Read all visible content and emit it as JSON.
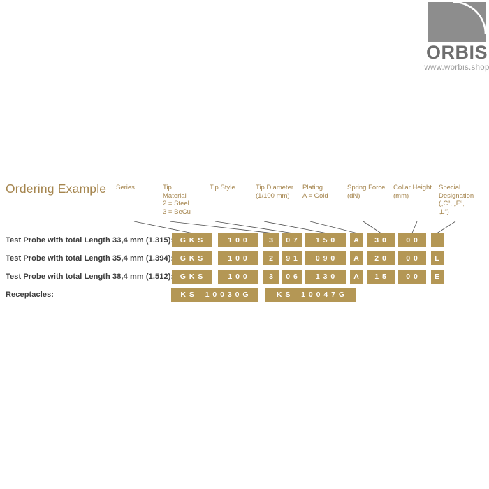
{
  "logo": {
    "brand": "ORBIS",
    "website": "www.worbis.shop",
    "mark_icon": "quarter-arc-square",
    "colors": {
      "square": "#8d8d8d",
      "arc": "#ffffff",
      "brand_text": "#6e6e6e",
      "website_text": "#9c9c9c"
    }
  },
  "title": "Ordering Example",
  "accent_color": "#a5854e",
  "cell_color": "#b49755",
  "columns": [
    {
      "label": "Series"
    },
    {
      "label": "Tip\nMaterial\n2 = Steel\n3 = BeCu"
    },
    {
      "label": "Tip Style"
    },
    {
      "label": "Tip Diameter\n(1/100 mm)"
    },
    {
      "label": "Plating\nA = Gold"
    },
    {
      "label": "Spring Force\n(dN)"
    },
    {
      "label": "Collar Height\n(mm)"
    },
    {
      "label": "Special\nDesignation\n(„C“, „E“,\n„L“)"
    }
  ],
  "rows": [
    {
      "label": "Test Probe with total Length 33,4 mm (1.315):",
      "cells": [
        "G K S",
        "1 0 0",
        "3",
        "0 7",
        "1 5 0",
        "A",
        "3 0",
        "0 0",
        ""
      ]
    },
    {
      "label": "Test Probe with total Length 35,4 mm (1.394):",
      "cells": [
        "G K S",
        "1 0 0",
        "2",
        "9 1",
        "0 9 0",
        "A",
        "2 0",
        "0 0",
        "L"
      ]
    },
    {
      "label": "Test Probe with total Length 38,4 mm (1.512):",
      "cells": [
        "G K S",
        "1 0 0",
        "3",
        "0 6",
        "1 3 0",
        "A",
        "1 5",
        "0 0",
        "E"
      ]
    }
  ],
  "receptacles": {
    "label": "Receptacles:",
    "cells": [
      "K S – 1 0 0 3 0 G",
      "K S – 1 0 0 4 7 G"
    ]
  }
}
